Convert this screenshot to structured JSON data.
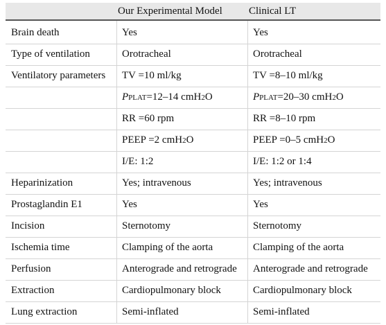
{
  "table": {
    "header": [
      null,
      "Our Experimental Model",
      "Clinical LT"
    ],
    "rows": [
      [
        "Brain death",
        "Yes",
        "Yes"
      ],
      [
        "Type of ventilation",
        "Orotracheal",
        "Orotracheal"
      ],
      [
        "Ventilatory parameters",
        "TV =10 ml/kg",
        "TV =8–10 ml/kg"
      ],
      [
        null,
        [
          {
            "text": "P",
            "italic": true
          },
          {
            "text": "PLAT",
            "sub": true
          },
          {
            "text": " =12–14 cmH"
          },
          {
            "text": "2",
            "sub": true
          },
          {
            "text": "O"
          }
        ],
        [
          {
            "text": "P",
            "italic": true
          },
          {
            "text": "PLAT",
            "sub": true
          },
          {
            "text": " =20–30 cmH"
          },
          {
            "text": "2",
            "sub": true
          },
          {
            "text": "O"
          }
        ]
      ],
      [
        null,
        "RR =60 rpm",
        "RR =8–10 rpm"
      ],
      [
        null,
        [
          {
            "text": "PEEP =2 cmH"
          },
          {
            "text": "2",
            "sub": true
          },
          {
            "text": "O"
          }
        ],
        [
          {
            "text": "PEEP =0–5 cmH"
          },
          {
            "text": "2",
            "sub": true
          },
          {
            "text": "O"
          }
        ]
      ],
      [
        null,
        "I/E: 1:2",
        "I/E: 1:2 or 1:4"
      ],
      [
        "Heparinization",
        "Yes; intravenous",
        "Yes; intravenous"
      ],
      [
        "Prostaglandin E1",
        "Yes",
        "Yes"
      ],
      [
        "Incision",
        "Sternotomy",
        "Sternotomy"
      ],
      [
        "Ischemia time",
        "Clamping of the aorta",
        "Clamping of the aorta"
      ],
      [
        "Perfusion",
        "Anterograde and retrograde",
        "Anterograde and retrograde"
      ],
      [
        "Extraction",
        "Cardiopulmonary block",
        "Cardiopulmonary block"
      ],
      [
        "Lung extraction",
        "Semi-inflated",
        "Semi-inflated"
      ]
    ]
  }
}
